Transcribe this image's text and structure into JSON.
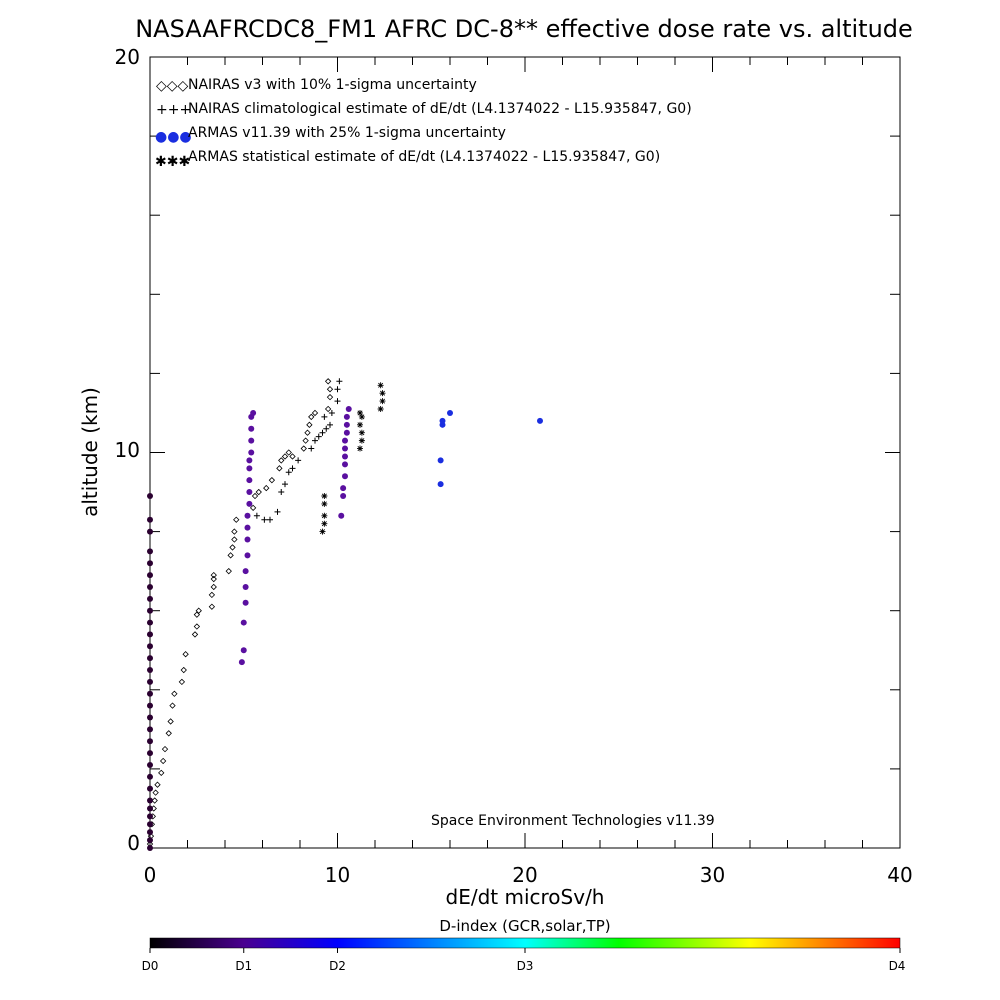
{
  "chart_data": {
    "type": "scatter",
    "title": "NASAAFRCDC8_FM1 AFRC DC-8** effective dose rate vs. altitude",
    "xlabel": "dE/dt microSv/h",
    "ylabel": "altitude (km)",
    "xlim": [
      0,
      40
    ],
    "ylim": [
      0,
      20
    ],
    "x_ticks": [
      "0",
      "10",
      "20",
      "30",
      "40"
    ],
    "y_ticks": [
      "0",
      "10",
      "20"
    ],
    "legend": {
      "placement": "top-left",
      "entries": [
        {
          "symbol": "◇◇◇",
          "text": "NAIRAS v3 with 10% 1-sigma uncertainty"
        },
        {
          "symbol": "+++",
          "text": "NAIRAS climatological estimate of dE/dt (L4.1374022 - L15.935847, G0)"
        },
        {
          "symbol": "●●●",
          "text": "ARMAS v11.39 with 25% 1-sigma uncertainty"
        },
        {
          "symbol": "✱✱✱",
          "text": "ARMAS statistical estimate of dE/dt (L4.1374022 - L15.935847, G0)"
        }
      ]
    },
    "annotation": "Space Environment Technologies v11.39",
    "colors": {
      "nairas": "#000000",
      "armas_low": "#2a0030",
      "armas_mid": "#5a10a0",
      "armas_high": "#1a2ee0"
    },
    "series": [
      {
        "name": "NAIRAS v3 with 10% 1-sigma uncertainty",
        "marker": "diamond",
        "points": [
          [
            0.0,
            0.1
          ],
          [
            0.05,
            0.3
          ],
          [
            0.1,
            0.6
          ],
          [
            0.15,
            0.8
          ],
          [
            0.2,
            1.0
          ],
          [
            0.25,
            1.2
          ],
          [
            0.3,
            1.4
          ],
          [
            0.4,
            1.6
          ],
          [
            0.6,
            1.9
          ],
          [
            0.7,
            2.2
          ],
          [
            0.8,
            2.5
          ],
          [
            1.0,
            2.9
          ],
          [
            1.1,
            3.2
          ],
          [
            1.2,
            3.6
          ],
          [
            1.3,
            3.9
          ],
          [
            1.7,
            4.2
          ],
          [
            1.8,
            4.5
          ],
          [
            1.9,
            4.9
          ],
          [
            2.4,
            5.4
          ],
          [
            2.5,
            5.6
          ],
          [
            2.5,
            5.9
          ],
          [
            2.6,
            6.0
          ],
          [
            3.3,
            6.1
          ],
          [
            3.3,
            6.4
          ],
          [
            3.4,
            6.6
          ],
          [
            3.4,
            6.8
          ],
          [
            3.4,
            6.9
          ],
          [
            4.2,
            7.0
          ],
          [
            4.3,
            7.4
          ],
          [
            4.4,
            7.6
          ],
          [
            4.5,
            7.8
          ],
          [
            4.5,
            8.0
          ],
          [
            4.6,
            8.3
          ],
          [
            5.5,
            8.6
          ],
          [
            5.6,
            8.9
          ],
          [
            5.8,
            9.0
          ],
          [
            6.2,
            9.1
          ],
          [
            6.5,
            9.3
          ],
          [
            6.9,
            9.6
          ],
          [
            7.0,
            9.8
          ],
          [
            7.2,
            9.9
          ],
          [
            7.4,
            10.0
          ],
          [
            7.6,
            9.9
          ],
          [
            8.2,
            10.1
          ],
          [
            8.3,
            10.3
          ],
          [
            8.4,
            10.5
          ],
          [
            8.5,
            10.7
          ],
          [
            8.6,
            10.9
          ],
          [
            8.8,
            11.0
          ],
          [
            9.5,
            11.1
          ],
          [
            9.6,
            11.4
          ],
          [
            9.6,
            11.6
          ],
          [
            9.5,
            11.8
          ]
        ]
      },
      {
        "name": "NAIRAS climatological estimate of dE/dt (L4.1374022 - L15.935847, G0)",
        "marker": "plus",
        "points": [
          [
            5.7,
            8.4
          ],
          [
            6.1,
            8.3
          ],
          [
            6.4,
            8.3
          ],
          [
            6.8,
            8.5
          ],
          [
            7.0,
            9.0
          ],
          [
            7.2,
            9.2
          ],
          [
            7.4,
            9.5
          ],
          [
            7.6,
            9.6
          ],
          [
            7.9,
            9.8
          ],
          [
            8.6,
            10.1
          ],
          [
            8.8,
            10.3
          ],
          [
            9.0,
            10.4
          ],
          [
            9.2,
            10.5
          ],
          [
            9.4,
            10.6
          ],
          [
            9.6,
            10.7
          ],
          [
            9.3,
            10.9
          ],
          [
            9.7,
            11.0
          ],
          [
            10.0,
            11.3
          ],
          [
            10.0,
            11.6
          ],
          [
            10.1,
            11.8
          ]
        ]
      },
      {
        "name": "ARMAS v11.39 with 25% 1-sigma uncertainty",
        "marker": "dot",
        "points": [
          [
            0.0,
            0.0
          ],
          [
            0.0,
            0.2
          ],
          [
            0.0,
            0.4
          ],
          [
            0.0,
            0.6
          ],
          [
            0.0,
            0.8
          ],
          [
            0.0,
            1.0
          ],
          [
            0.0,
            1.2
          ],
          [
            0.0,
            1.5
          ],
          [
            0.0,
            1.8
          ],
          [
            0.0,
            2.1
          ],
          [
            0.0,
            2.4
          ],
          [
            0.0,
            2.7
          ],
          [
            0.0,
            3.0
          ],
          [
            0.0,
            3.3
          ],
          [
            0.0,
            3.6
          ],
          [
            0.0,
            3.9
          ],
          [
            0.0,
            4.2
          ],
          [
            0.0,
            4.5
          ],
          [
            0.0,
            4.8
          ],
          [
            0.0,
            5.1
          ],
          [
            0.0,
            5.4
          ],
          [
            0.0,
            5.7
          ],
          [
            0.0,
            6.0
          ],
          [
            0.0,
            6.3
          ],
          [
            0.0,
            6.6
          ],
          [
            0.0,
            6.9
          ],
          [
            0.0,
            7.2
          ],
          [
            0.0,
            7.5
          ],
          [
            0.0,
            8.0
          ],
          [
            0.0,
            8.3
          ],
          [
            0.0,
            8.9
          ],
          [
            4.9,
            4.7
          ],
          [
            5.0,
            5.0
          ],
          [
            5.0,
            5.7
          ],
          [
            5.1,
            6.2
          ],
          [
            5.1,
            6.6
          ],
          [
            5.1,
            7.0
          ],
          [
            5.2,
            7.4
          ],
          [
            5.2,
            7.8
          ],
          [
            5.2,
            8.1
          ],
          [
            5.2,
            8.4
          ],
          [
            5.3,
            8.7
          ],
          [
            5.3,
            9.0
          ],
          [
            5.3,
            9.3
          ],
          [
            5.3,
            9.6
          ],
          [
            5.3,
            9.8
          ],
          [
            5.4,
            10.0
          ],
          [
            5.4,
            10.3
          ],
          [
            5.4,
            10.6
          ],
          [
            5.4,
            10.9
          ],
          [
            5.5,
            11.0
          ],
          [
            10.2,
            8.4
          ],
          [
            10.3,
            8.9
          ],
          [
            10.3,
            9.1
          ],
          [
            10.4,
            9.4
          ],
          [
            10.4,
            9.7
          ],
          [
            10.4,
            9.9
          ],
          [
            10.4,
            10.1
          ],
          [
            10.4,
            10.3
          ],
          [
            10.5,
            10.5
          ],
          [
            10.5,
            10.7
          ],
          [
            10.5,
            10.9
          ],
          [
            10.6,
            11.1
          ],
          [
            15.5,
            9.2
          ],
          [
            15.5,
            9.8
          ],
          [
            15.6,
            10.7
          ],
          [
            15.6,
            10.8
          ],
          [
            16.0,
            11.0
          ],
          [
            20.8,
            10.8
          ]
        ]
      },
      {
        "name": "ARMAS statistical estimate of dE/dt (L4.1374022 - L15.935847, G0)",
        "marker": "asterisk",
        "points": [
          [
            9.2,
            8.0
          ],
          [
            9.3,
            8.2
          ],
          [
            9.3,
            8.4
          ],
          [
            9.3,
            8.7
          ],
          [
            9.3,
            8.9
          ],
          [
            11.2,
            10.1
          ],
          [
            11.3,
            10.3
          ],
          [
            11.3,
            10.5
          ],
          [
            11.2,
            10.7
          ],
          [
            11.3,
            10.9
          ],
          [
            11.2,
            11.0
          ],
          [
            12.3,
            11.1
          ],
          [
            12.4,
            11.3
          ],
          [
            12.4,
            11.5
          ],
          [
            12.3,
            11.7
          ]
        ]
      }
    ],
    "colorbar": {
      "title": "D-index (GCR,solar,TP)",
      "labels": [
        "D0",
        "D1",
        "D2",
        "D3",
        "D4"
      ],
      "label_positions": [
        0,
        0.125,
        0.25,
        0.5,
        1.0
      ],
      "colors": [
        "#000000",
        "#4a0090",
        "#0000ff",
        "#00ffff",
        "#00ff00",
        "#ffff00",
        "#ff0000"
      ]
    }
  }
}
